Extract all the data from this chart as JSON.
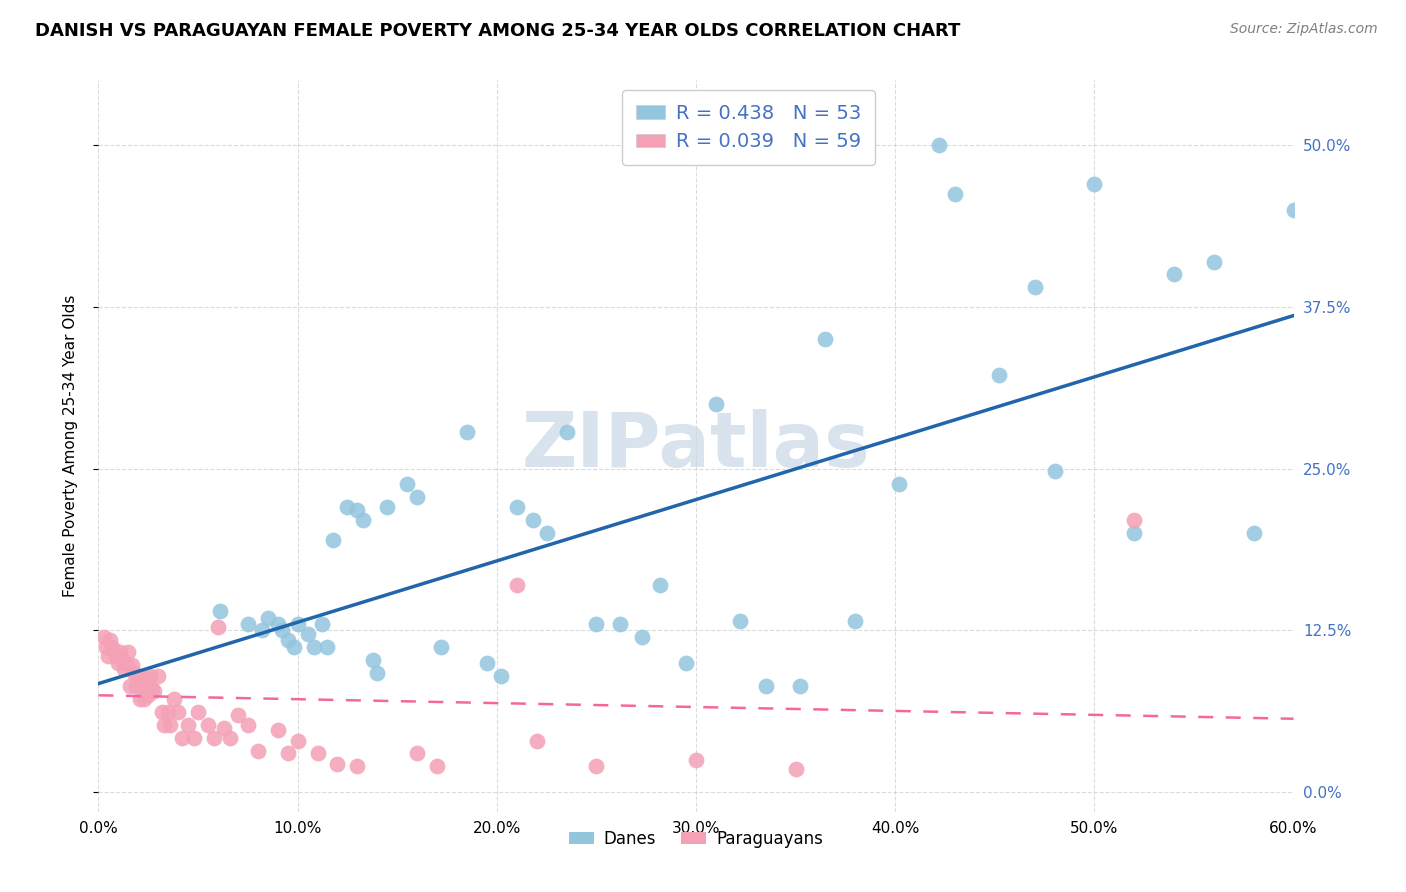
{
  "title": "DANISH VS PARAGUAYAN FEMALE POVERTY AMONG 25-34 YEAR OLDS CORRELATION CHART",
  "source": "Source: ZipAtlas.com",
  "ylabel": "Female Poverty Among 25-34 Year Olds",
  "xtick_vals": [
    0.0,
    0.1,
    0.2,
    0.3,
    0.4,
    0.5,
    0.6
  ],
  "xtick_labels": [
    "0.0%",
    "10.0%",
    "20.0%",
    "30.0%",
    "40.0%",
    "50.0%",
    "60.0%"
  ],
  "ytick_vals": [
    0.0,
    0.125,
    0.25,
    0.375,
    0.5
  ],
  "ytick_labels": [
    "0.0%",
    "12.5%",
    "25.0%",
    "37.5%",
    "50.0%"
  ],
  "xlim": [
    0.0,
    0.6
  ],
  "ylim": [
    -0.015,
    0.55
  ],
  "danes_R": 0.438,
  "danes_N": 53,
  "paraguay_R": 0.039,
  "paraguay_N": 59,
  "legend_label_danes": "Danes",
  "legend_label_paraguay": "Paraguayans",
  "danes_color": "#92c5de",
  "paraguay_color": "#f4a0b5",
  "danes_line_color": "#2166ac",
  "paraguay_line_color": "#f4679d",
  "tick_color": "#4472c4",
  "background_color": "#ffffff",
  "grid_color": "#cccccc",
  "watermark": "ZIPatlas",
  "watermark_color": "#c8d8e8",
  "danes_x": [
    0.061,
    0.075,
    0.082,
    0.085,
    0.09,
    0.092,
    0.095,
    0.098,
    0.1,
    0.105,
    0.108,
    0.112,
    0.115,
    0.118,
    0.125,
    0.13,
    0.133,
    0.138,
    0.14,
    0.145,
    0.155,
    0.16,
    0.172,
    0.185,
    0.195,
    0.202,
    0.21,
    0.218,
    0.225,
    0.235,
    0.25,
    0.262,
    0.273,
    0.282,
    0.295,
    0.31,
    0.322,
    0.335,
    0.352,
    0.365,
    0.38,
    0.402,
    0.422,
    0.43,
    0.452,
    0.47,
    0.48,
    0.5,
    0.52,
    0.54,
    0.56,
    0.58,
    0.6
  ],
  "danes_y": [
    0.14,
    0.13,
    0.125,
    0.135,
    0.13,
    0.125,
    0.118,
    0.112,
    0.13,
    0.122,
    0.112,
    0.13,
    0.112,
    0.195,
    0.22,
    0.218,
    0.21,
    0.102,
    0.092,
    0.22,
    0.238,
    0.228,
    0.112,
    0.278,
    0.1,
    0.09,
    0.22,
    0.21,
    0.2,
    0.278,
    0.13,
    0.13,
    0.12,
    0.16,
    0.1,
    0.3,
    0.132,
    0.082,
    0.082,
    0.35,
    0.132,
    0.238,
    0.5,
    0.462,
    0.322,
    0.39,
    0.248,
    0.47,
    0.2,
    0.4,
    0.41,
    0.2,
    0.45
  ],
  "paraguay_x": [
    0.003,
    0.004,
    0.005,
    0.006,
    0.007,
    0.008,
    0.009,
    0.01,
    0.011,
    0.012,
    0.013,
    0.014,
    0.015,
    0.016,
    0.017,
    0.018,
    0.019,
    0.02,
    0.021,
    0.022,
    0.023,
    0.024,
    0.025,
    0.026,
    0.027,
    0.028,
    0.03,
    0.032,
    0.033,
    0.035,
    0.036,
    0.038,
    0.04,
    0.042,
    0.045,
    0.048,
    0.05,
    0.055,
    0.058,
    0.06,
    0.063,
    0.066,
    0.07,
    0.075,
    0.08,
    0.09,
    0.095,
    0.1,
    0.11,
    0.12,
    0.13,
    0.16,
    0.17,
    0.21,
    0.22,
    0.25,
    0.3,
    0.35,
    0.52
  ],
  "paraguay_y": [
    0.12,
    0.112,
    0.105,
    0.118,
    0.112,
    0.108,
    0.105,
    0.1,
    0.108,
    0.102,
    0.095,
    0.1,
    0.108,
    0.082,
    0.098,
    0.092,
    0.082,
    0.09,
    0.072,
    0.082,
    0.072,
    0.088,
    0.075,
    0.09,
    0.08,
    0.078,
    0.09,
    0.062,
    0.052,
    0.062,
    0.052,
    0.072,
    0.062,
    0.042,
    0.052,
    0.042,
    0.062,
    0.052,
    0.042,
    0.128,
    0.05,
    0.042,
    0.06,
    0.052,
    0.032,
    0.048,
    0.03,
    0.04,
    0.03,
    0.022,
    0.02,
    0.03,
    0.02,
    0.16,
    0.04,
    0.02,
    0.025,
    0.018,
    0.21
  ]
}
